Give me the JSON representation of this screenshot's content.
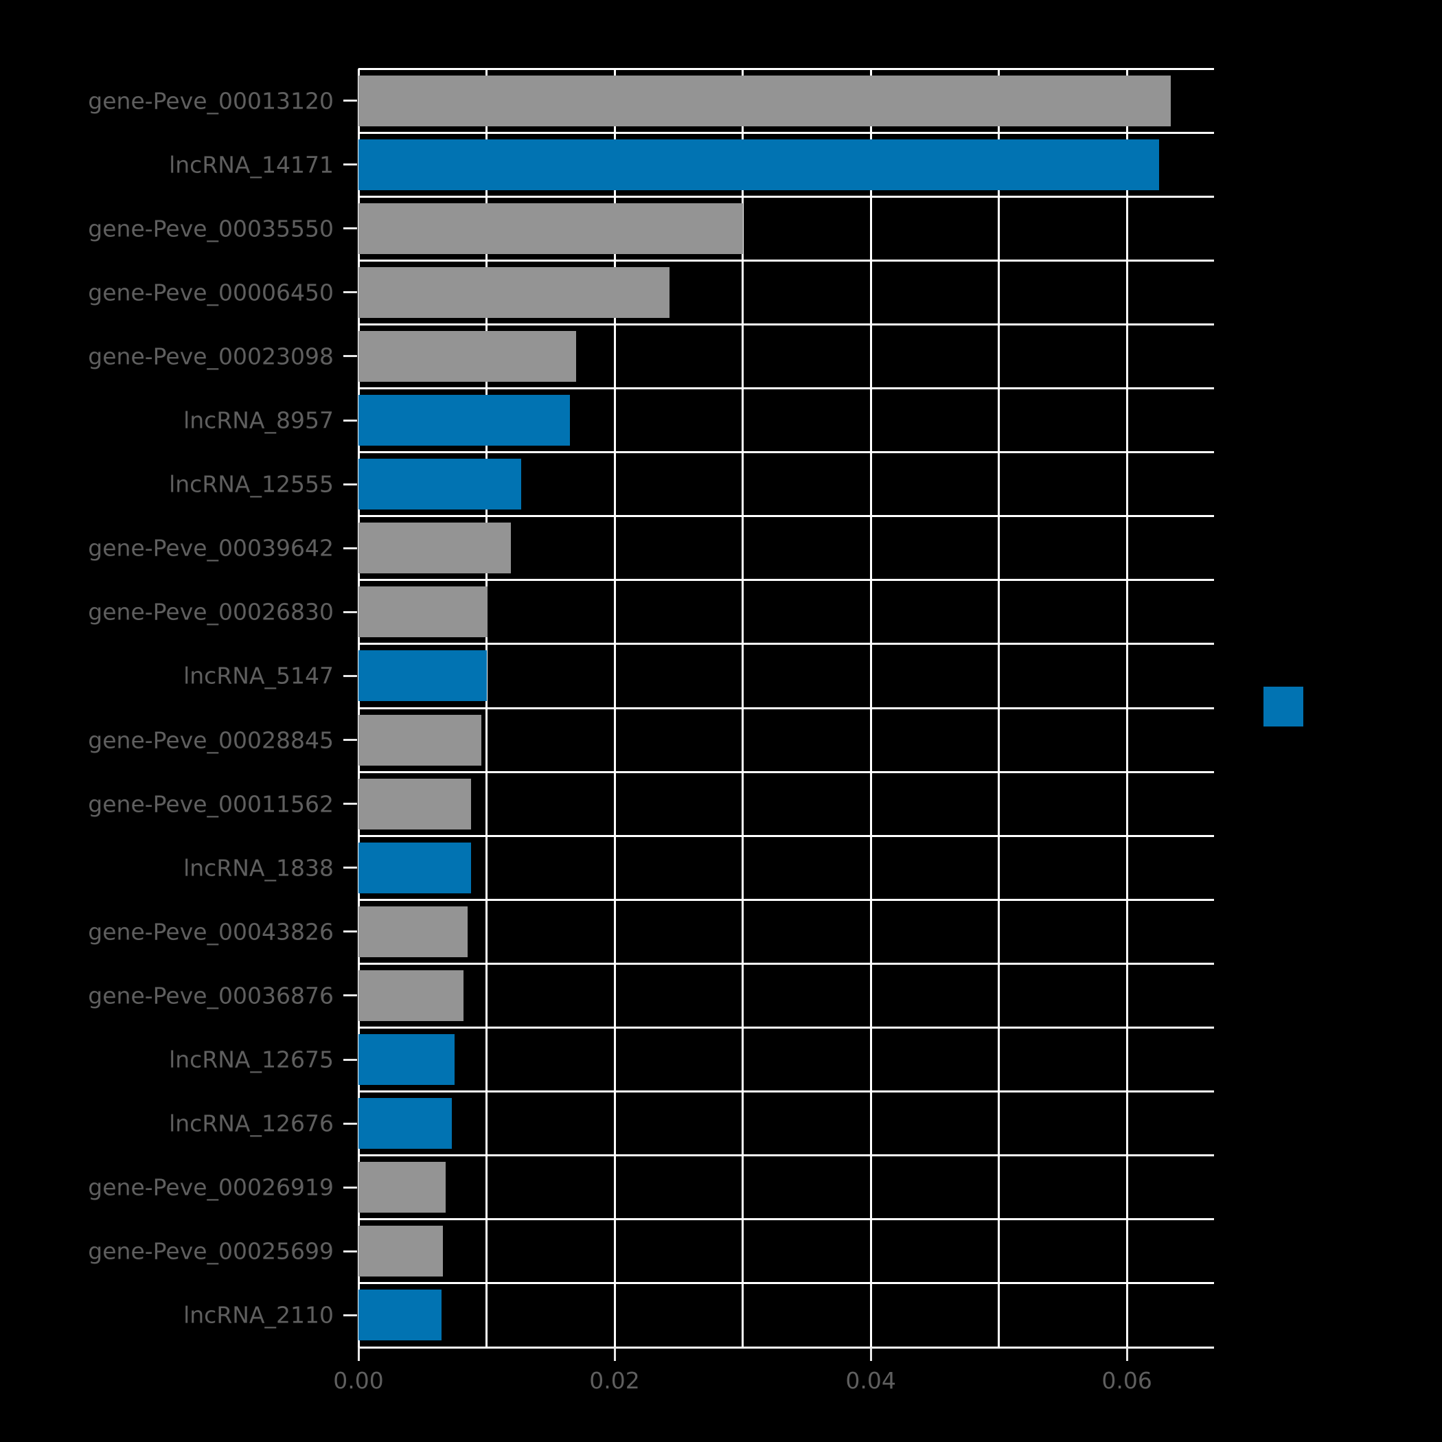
{
  "figure": {
    "background": "#000000"
  },
  "chart_data": {
    "type": "bar",
    "orientation": "horizontal",
    "title": "",
    "xlabel": "",
    "ylabel": "",
    "xlim": [
      0.0,
      0.0668
    ],
    "x_major_ticks": [
      0.0,
      0.02,
      0.04,
      0.06
    ],
    "x_tick_labels": [
      "0.00",
      "0.02",
      "0.04",
      "0.06"
    ],
    "x_grid_interval": 0.01,
    "grid": true,
    "gridline_color": "#ffffff",
    "tick_color": "#e8e8e8",
    "label_color": "#5f5f5f",
    "legend_position": "center-right",
    "series_colors": {
      "gene": "#949494",
      "lncRNA": "#0173b2"
    },
    "bars": [
      {
        "label": "gene-Peve_00013120",
        "value": 0.0634,
        "group": "gene"
      },
      {
        "label": "lncRNA_14171",
        "value": 0.0625,
        "group": "lncRNA"
      },
      {
        "label": "gene-Peve_00035550",
        "value": 0.03,
        "group": "gene"
      },
      {
        "label": "gene-Peve_00006450",
        "value": 0.0243,
        "group": "gene"
      },
      {
        "label": "gene-Peve_00023098",
        "value": 0.017,
        "group": "gene"
      },
      {
        "label": "lncRNA_8957",
        "value": 0.0165,
        "group": "lncRNA"
      },
      {
        "label": "lncRNA_12555",
        "value": 0.0127,
        "group": "lncRNA"
      },
      {
        "label": "gene-Peve_00039642",
        "value": 0.0119,
        "group": "gene"
      },
      {
        "label": "gene-Peve_00026830",
        "value": 0.0101,
        "group": "gene"
      },
      {
        "label": "lncRNA_5147",
        "value": 0.01,
        "group": "lncRNA"
      },
      {
        "label": "gene-Peve_00028845",
        "value": 0.0096,
        "group": "gene"
      },
      {
        "label": "gene-Peve_00011562",
        "value": 0.0088,
        "group": "gene"
      },
      {
        "label": "lncRNA_1838",
        "value": 0.0088,
        "group": "lncRNA"
      },
      {
        "label": "gene-Peve_00043826",
        "value": 0.0085,
        "group": "gene"
      },
      {
        "label": "gene-Peve_00036876",
        "value": 0.0082,
        "group": "gene"
      },
      {
        "label": "lncRNA_12675",
        "value": 0.0075,
        "group": "lncRNA"
      },
      {
        "label": "lncRNA_12676",
        "value": 0.0073,
        "group": "lncRNA"
      },
      {
        "label": "gene-Peve_00026919",
        "value": 0.0068,
        "group": "gene"
      },
      {
        "label": "gene-Peve_00025699",
        "value": 0.0066,
        "group": "gene"
      },
      {
        "label": "lncRNA_2110",
        "value": 0.0065,
        "group": "lncRNA"
      }
    ]
  },
  "legend": {
    "swatch_color": "#0173b2",
    "label": ""
  }
}
